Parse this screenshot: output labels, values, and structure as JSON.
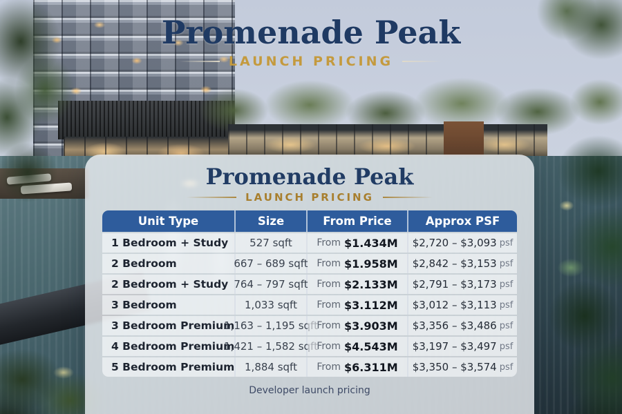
{
  "hero": {
    "title": "Promenade Peak",
    "subtitle": "LAUNCH PRICING"
  },
  "card": {
    "title": "Promenade Peak",
    "subtitle": "LAUNCH PRICING",
    "footnote": "Developer launch pricing",
    "table": {
      "headers": [
        "Unit Type",
        "Size",
        "From Price",
        "Approx PSF"
      ],
      "price_prefix": "From",
      "psf_suffix": "psf",
      "rows": [
        {
          "unit": "1 Bedroom + Study",
          "size": "527 sqft",
          "price": "$1.434M",
          "psf": "$2,720 – $3,093"
        },
        {
          "unit": "2 Bedroom",
          "size": "667 – 689 sqft",
          "price": "$1.958M",
          "psf": "$2,842 – $3,153"
        },
        {
          "unit": "2 Bedroom + Study",
          "size": "764 – 797 sqft",
          "price": "$2.133M",
          "psf": "$2,791 – $3,173"
        },
        {
          "unit": "3 Bedroom",
          "size": "1,033 sqft",
          "price": "$3.112M",
          "psf": "$3,012 – $3,113"
        },
        {
          "unit": "3 Bedroom Premium",
          "size": "1,163 – 1,195 sqft",
          "price": "$3.903M",
          "psf": "$3,356 – $3,486"
        },
        {
          "unit": "4 Bedroom Premium",
          "size": "1,421 – 1,582 sqft",
          "price": "$4.543M",
          "psf": "$3,197 – $3,497"
        },
        {
          "unit": "5 Bedroom Premium",
          "size": "1,884 sqft",
          "price": "$6.311M",
          "psf": "$3,350 – $3,574"
        }
      ]
    }
  },
  "colors": {
    "header_blue": "#2e5c9c",
    "title_navy": "#1f3a63",
    "accent_gold": "#b68b35"
  }
}
